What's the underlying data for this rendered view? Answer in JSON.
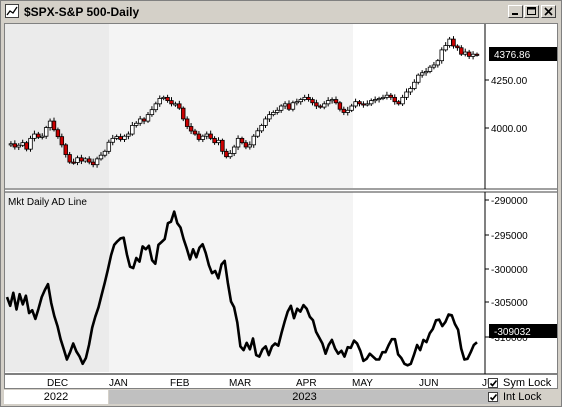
{
  "window": {
    "title": "$SPX-S&P 500-Daily"
  },
  "window_buttons": {
    "minimize": "minimize",
    "maximize": "maximize",
    "close": "close"
  },
  "colors": {
    "up_bar": "#ffffff",
    "down_bar": "#cc0000",
    "price_tag_bg": "#000000",
    "price_tag_text": "#ffffff",
    "ad_line": "#000000",
    "shade": "#e9e9e9"
  },
  "chart_data": [
    {
      "type": "candlestick",
      "title": "$SPX-S&P 500-Daily",
      "yticks": [
        4000,
        4250
      ],
      "ylim": [
        3760,
        4520
      ],
      "last_value_label": "4376.86",
      "last_value": 4376.86,
      "x": [
        0,
        2,
        4,
        6,
        8,
        10,
        12,
        14,
        16,
        18,
        20,
        22,
        24,
        26,
        28,
        30,
        32,
        34,
        36,
        38,
        40,
        42,
        44,
        46,
        48,
        50,
        52,
        54,
        56,
        58,
        60,
        62,
        64,
        66,
        68,
        70,
        72,
        74,
        76,
        78,
        80,
        82,
        84,
        86,
        88,
        90,
        92,
        94,
        96,
        98,
        100,
        102,
        104,
        106,
        108,
        110,
        112,
        114,
        116,
        118,
        120,
        122,
        124,
        126,
        128,
        130,
        132,
        134,
        136,
        138,
        140,
        142,
        144,
        146,
        148,
        150,
        152,
        154,
        156,
        158,
        160,
        162,
        164,
        166,
        168,
        170,
        172,
        174,
        176,
        178,
        180,
        182,
        184,
        186,
        188,
        190,
        192,
        194,
        196,
        198,
        200,
        202,
        204,
        206,
        208,
        210,
        212,
        214,
        216,
        218,
        220,
        222,
        224,
        226,
        228,
        230,
        232,
        234,
        236,
        238,
        240
      ],
      "values": [
        3960,
        3965,
        3950,
        3958,
        3970,
        3940,
        3990,
        4010,
        3995,
        4000,
        4040,
        4070,
        4030,
        3998,
        3960,
        3915,
        3880,
        3878,
        3900,
        3885,
        3895,
        3880,
        3868,
        3895,
        3912,
        3930,
        3972,
        3990,
        3998,
        3985,
        4000,
        4010,
        4050,
        4060,
        4080,
        4070,
        4100,
        4123,
        4150,
        4175,
        4180,
        4165,
        4150,
        4150,
        4130,
        4080,
        4045,
        4024,
        4010,
        3985,
        4000,
        4010,
        3990,
        3970,
        3981,
        3930,
        3905,
        3920,
        3950,
        3990,
        3970,
        3950,
        3960,
        4000,
        4025,
        4050,
        4080,
        4100,
        4110,
        4120,
        4140,
        4150,
        4125,
        4155,
        4160,
        4170,
        4180,
        4170,
        4155,
        4140,
        4135,
        4150,
        4165,
        4170,
        4155,
        4125,
        4110,
        4120,
        4140,
        4160,
        4150,
        4146,
        4150,
        4165,
        4170,
        4175,
        4180,
        4190,
        4180,
        4160,
        4150,
        4180,
        4205,
        4221,
        4250,
        4283,
        4294,
        4300,
        4320,
        4330,
        4350,
        4400,
        4420,
        4450,
        4418,
        4410,
        4380,
        4390,
        4370,
        4380,
        4376.86
      ]
    },
    {
      "type": "line",
      "title": "Mkt Daily AD Line",
      "yticks": [
        -290000,
        -295000,
        -300000,
        -305000,
        -310000
      ],
      "ylim": [
        -313400,
        -288300
      ],
      "last_value_label": "-309032",
      "last_value": -309032,
      "values": [
        -302800,
        -304000,
        -302200,
        -304500,
        -302400,
        -303800,
        -302600,
        -305000,
        -304600,
        -305800,
        -304400,
        -302800,
        -301800,
        -301000,
        -303600,
        -305400,
        -306800,
        -308600,
        -310000,
        -311400,
        -310400,
        -309200,
        -310300,
        -311000,
        -312000,
        -311200,
        -309400,
        -307000,
        -305500,
        -304200,
        -302500,
        -300800,
        -299000,
        -297000,
        -295600,
        -295100,
        -294700,
        -294600,
        -296900,
        -298600,
        -298800,
        -297400,
        -297900,
        -295800,
        -296200,
        -295700,
        -297700,
        -298200,
        -295600,
        -295200,
        -294800,
        -292600,
        -292400,
        -291000,
        -292600,
        -293200,
        -294800,
        -296100,
        -297600,
        -296200,
        -297300,
        -296000,
        -295500,
        -296700,
        -298400,
        -299500,
        -299200,
        -300200,
        -298300,
        -297800,
        -300800,
        -303400,
        -304200,
        -306300,
        -309600,
        -310100,
        -309100,
        -310000,
        -308500,
        -310800,
        -311000,
        -310000,
        -309600,
        -310800,
        -309600,
        -309200,
        -309500,
        -307800,
        -306200,
        -304800,
        -304000,
        -305700,
        -304400,
        -304800,
        -303900,
        -304400,
        -305500,
        -306000,
        -307600,
        -308400,
        -309200,
        -310600,
        -309400,
        -308700,
        -309900,
        -310600,
        -310200,
        -311000,
        -309700,
        -309800,
        -308800,
        -309200,
        -310200,
        -311600,
        -311300,
        -310600,
        -311000,
        -311400,
        -311400,
        -310400,
        -310400,
        -309400,
        -308600,
        -308600,
        -310700,
        -311200,
        -312000,
        -312200,
        -312000,
        -310800,
        -309400,
        -310100,
        -308700,
        -309000,
        -307800,
        -307200,
        -306000,
        -305900,
        -306800,
        -306200,
        -305200,
        -305300,
        -306500,
        -307300,
        -309900,
        -311400,
        -311300,
        -310400,
        -309400,
        -309032
      ],
      "line_color": "#000000"
    }
  ],
  "axis": {
    "price_ticks": [
      {
        "label": "4250.00",
        "value": 4250
      },
      {
        "label": "4000.00",
        "value": 4000
      }
    ],
    "ad_ticks": [
      {
        "label": "-290000",
        "value": -290000
      },
      {
        "label": "-295000",
        "value": -295000
      },
      {
        "label": "-300000",
        "value": -300000
      },
      {
        "label": "-305000",
        "value": -305000
      },
      {
        "label": "-310000",
        "value": -310000
      }
    ],
    "months": [
      "DEC",
      "JAN",
      "FEB",
      "MAR",
      "APR",
      "MAY",
      "JUN",
      "JU"
    ]
  },
  "indicator": {
    "label": "Mkt Daily AD Line"
  },
  "price_tag": {
    "label": "4376.86"
  },
  "ad_tag": {
    "label": "-309032"
  },
  "years": {
    "left": "2022",
    "right": "2023"
  },
  "locks": {
    "sym": {
      "label": "Sym Lock",
      "checked": true
    },
    "int": {
      "label": "Int Lock",
      "checked": true
    }
  }
}
